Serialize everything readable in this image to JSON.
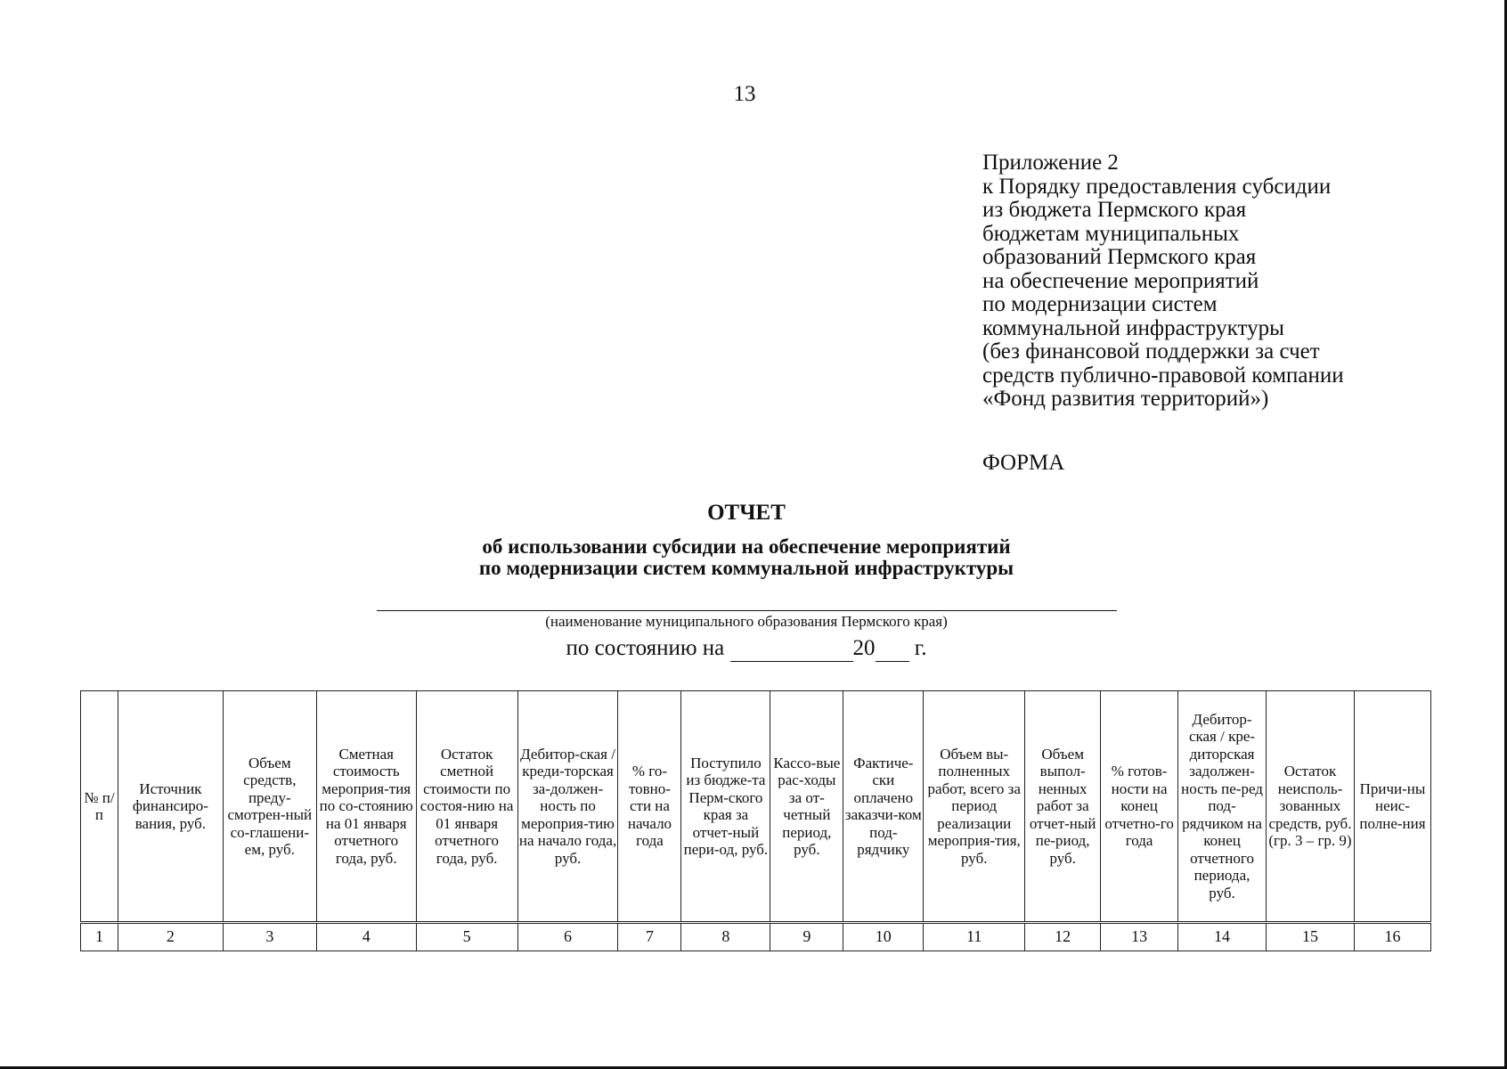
{
  "page_number": "13",
  "appendix": [
    "Приложение 2",
    "к Порядку предоставления субсидии",
    "из бюджета Пермского края",
    "бюджетам муниципальных",
    "образований Пермского края",
    "на обеспечение мероприятий",
    "по модернизации систем",
    "коммунальной инфраструктуры",
    "(без финансовой поддержки за счет",
    "средств публично-правовой компании",
    "«Фонд развития территорий»)"
  ],
  "form_label": "ФОРМА",
  "title": "ОТЧЕТ",
  "subtitle": [
    "об использовании субсидии на обеспечение мероприятий",
    "по модернизации систем коммунальной инфраструктуры"
  ],
  "caption": "(наименование муниципального образования Пермского края)",
  "state": {
    "prefix": "по состоянию на",
    "year": "20",
    "suffix": "г."
  },
  "table": {
    "headers": [
      "№ п/п",
      "Источник финансиро-вания, руб.",
      "Объем средств, преду-смотрен-ный со-глашени-ем, руб.",
      "Сметная стоимость мероприя-тия по со-стоянию на 01 января отчетного года, руб.",
      "Остаток сметной стоимости по состоя-нию на 01 января отчетного года, руб.",
      "Дебитор-ская / креди-торская за-должен-ность по мероприя-тию на начало года, руб.",
      "% го-товно-сти на начало года",
      "Поступило из бюдже-та Перм-ского края за отчет-ный пери-од, руб.",
      "Кассо-вые рас-ходы за от-четный период, руб.",
      "Фактиче-ски оплачено заказчи-ком под-рядчику",
      "Объем вы-полненных работ, всего за период реализации мероприя-тия, руб.",
      "Объем выпол-ненных работ за отчет-ный пе-риод, руб.",
      "% готов-ности на конец отчетно-го года",
      "Дебитор-ская / кре-диторская задолжен-ность пе-ред под-рядчиком на конец отчетного периода, руб.",
      "Остаток неисполь-зованных средств, руб. (гр. 3 – гр. 9)",
      "Причи-ны неис-полне-ния"
    ],
    "numbers": [
      "1",
      "2",
      "3",
      "4",
      "5",
      "6",
      "7",
      "8",
      "9",
      "10",
      "11",
      "12",
      "13",
      "14",
      "15",
      "16"
    ]
  }
}
